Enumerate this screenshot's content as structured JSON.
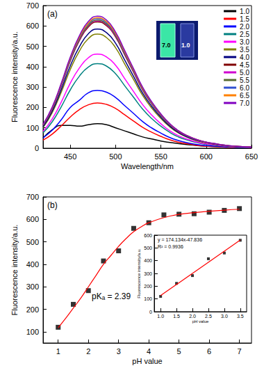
{
  "chart_data": [
    {
      "type": "line",
      "x_label": "Wavelength/nm",
      "y_label": "Fluorescence intensity/a.u.",
      "annotations": [
        "(a)",
        "7.0",
        "1.0"
      ],
      "x": [
        420,
        430,
        440,
        450,
        460,
        470,
        480,
        490,
        500,
        510,
        520,
        530,
        540,
        550,
        560,
        570,
        580,
        590,
        600,
        610,
        620,
        630,
        640,
        650
      ],
      "xlim": [
        420,
        650
      ],
      "xticks": [
        450,
        500,
        550,
        600,
        650
      ],
      "ylim": [
        0,
        700
      ],
      "yticks": [
        0,
        100,
        200,
        300,
        400,
        500,
        600,
        700
      ],
      "grid": false,
      "legend": "top-right",
      "series": [
        {
          "name": "1.0",
          "color": "#000000",
          "values": [
            50,
            90,
            112,
            112,
            108,
            115,
            120,
            115,
            100,
            85,
            70,
            55,
            45,
            35,
            28,
            22,
            17,
            13,
            10,
            8,
            6,
            5,
            4,
            3
          ]
        },
        {
          "name": "1.5",
          "color": "#ff0000",
          "values": [
            40,
            69,
            109,
            153,
            189,
            213,
            222,
            215,
            195,
            164,
            133,
            102,
            78,
            58,
            41,
            29,
            21,
            14,
            10,
            8,
            5,
            3,
            3,
            2
          ]
        },
        {
          "name": "2.0",
          "color": "#0000ff",
          "values": [
            51,
            88,
            139,
            200,
            235,
            272,
            283,
            275,
            249,
            209,
            170,
            130,
            99,
            74,
            52,
            37,
            26,
            18,
            13,
            10,
            7,
            4,
            3,
            3
          ]
        },
        {
          "name": "2.5",
          "color": "#008080",
          "values": [
            75,
            129,
            203,
            286,
            353,
            398,
            415,
            403,
            365,
            307,
            249,
            191,
            145,
            108,
            77,
            54,
            39,
            27,
            19,
            14,
            10,
            6,
            5,
            4
          ]
        },
        {
          "name": "3.0",
          "color": "#ff00ff",
          "values": [
            83,
            143,
            226,
            319,
            393,
            444,
            462,
            448,
            407,
            342,
            277,
            213,
            162,
            120,
            85,
            60,
            43,
            30,
            21,
            16,
            11,
            7,
            6,
            4
          ]
        },
        {
          "name": "3.5",
          "color": "#808000",
          "values": [
            101,
            174,
            274,
            386,
            476,
            538,
            560,
            543,
            493,
            414,
            336,
            258,
            196,
            146,
            104,
            73,
            52,
            36,
            26,
            19,
            13,
            8,
            7,
            5
          ]
        },
        {
          "name": "4.0",
          "color": "#000080",
          "values": [
            105,
            181,
            287,
            404,
            497,
            562,
            585,
            567,
            515,
            433,
            351,
            269,
            205,
            152,
            108,
            76,
            54,
            38,
            27,
            20,
            13,
            9,
            7,
            5
          ]
        },
        {
          "name": "4.5",
          "color": "#800000",
          "values": [
            112,
            192,
            304,
            428,
            527,
            595,
            620,
            601,
            546,
            459,
            372,
            285,
            217,
            161,
            115,
            81,
            58,
            40,
            29,
            21,
            14,
            9,
            7,
            6
          ]
        },
        {
          "name": "5.0",
          "color": "#d000d0",
          "values": [
            113,
            194,
            306,
            431,
            531,
            600,
            625,
            606,
            550,
            463,
            375,
            288,
            219,
            163,
            116,
            81,
            58,
            41,
            29,
            21,
            14,
            9,
            8,
            6
          ]
        },
        {
          "name": "5.5",
          "color": "#556b2f",
          "values": [
            113,
            195,
            308,
            433,
            534,
            603,
            628,
            609,
            553,
            465,
            377,
            289,
            220,
            163,
            116,
            82,
            58,
            41,
            29,
            21,
            14,
            9,
            8,
            6
          ]
        },
        {
          "name": "6.0",
          "color": "#3050d0",
          "values": [
            114,
            197,
            311,
            438,
            540,
            610,
            635,
            616,
            559,
            470,
            381,
            292,
            222,
            165,
            117,
            83,
            59,
            41,
            29,
            22,
            15,
            10,
            8,
            6
          ]
        },
        {
          "name": "6.5",
          "color": "#ff8000",
          "values": [
            115,
            198,
            314,
            442,
            544,
            614,
            640,
            621,
            563,
            474,
            384,
            294,
            224,
            166,
            118,
            83,
            60,
            42,
            29,
            22,
            15,
            10,
            8,
            6
          ]
        },
        {
          "name": "7.0",
          "color": "#8000c0",
          "values": [
            117,
            201,
            318,
            447,
            551,
            622,
            648,
            629,
            570,
            480,
            389,
            298,
            227,
            168,
            120,
            84,
            60,
            42,
            30,
            22,
            15,
            10,
            8,
            6
          ]
        }
      ]
    },
    {
      "type": "scatter",
      "x_label": "pH value",
      "y_label": "Fluorescence intensity/a.u.",
      "annotations": [
        "(b)",
        "pKₐ = 2.39"
      ],
      "xlim": [
        0.5,
        7.4
      ],
      "xticks": [
        1,
        2,
        3,
        4,
        5,
        6,
        7
      ],
      "ylim": [
        50,
        700
      ],
      "yticks": [
        100,
        200,
        300,
        400,
        500,
        600,
        700
      ],
      "grid": false,
      "series": [
        {
          "type": "scatter",
          "marker": "square",
          "color": "#000000",
          "x": [
            1.0,
            1.5,
            2.0,
            2.5,
            3.0,
            3.5,
            4.0,
            4.5,
            5.0,
            5.5,
            6.0,
            6.5,
            7.0
          ],
          "values": [
            120,
            222,
            283,
            415,
            460,
            560,
            585,
            620,
            623,
            625,
            632,
            640,
            648
          ]
        },
        {
          "type": "line",
          "color": "#ff0000",
          "x": [
            1.0,
            1.25,
            1.5,
            1.75,
            2.0,
            2.25,
            2.5,
            2.75,
            3.0,
            3.25,
            3.5,
            3.75,
            4.0,
            4.5,
            5.0,
            5.5,
            6.0,
            6.5,
            7.0
          ],
          "values": [
            118,
            160,
            205,
            250,
            300,
            350,
            400,
            440,
            480,
            515,
            545,
            567,
            585,
            608,
            622,
            630,
            636,
            641,
            645
          ]
        }
      ]
    },
    {
      "type": "scatter",
      "x_label": "pH value",
      "y_label": "Fluorescence intensity/a.u.",
      "annotations": [
        "y = 174.134x-47.836",
        "R² = 0.9936"
      ],
      "xlim": [
        0.8,
        3.7
      ],
      "xticks": [
        {
          "value": 1,
          "label": "1.0"
        },
        {
          "value": 1.5,
          "label": "1.5"
        },
        {
          "value": 2,
          "label": "2.0"
        },
        {
          "value": 2.5,
          "label": "2.5"
        },
        {
          "value": 3,
          "label": "3.0"
        },
        {
          "value": 3.5,
          "label": "3.5"
        }
      ],
      "ylim": [
        0,
        600
      ],
      "yticks": [
        0,
        100,
        200,
        300,
        400,
        500,
        600
      ],
      "grid": false,
      "series": [
        {
          "type": "scatter",
          "marker": "square",
          "color": "#000000",
          "x": [
            1.0,
            1.5,
            2.0,
            2.5,
            3.0,
            3.5
          ],
          "values": [
            120,
            222,
            283,
            415,
            460,
            560
          ]
        },
        {
          "type": "line",
          "color": "#ff0000",
          "x": [
            1.0,
            3.5
          ],
          "values": [
            126.3,
            561.6
          ]
        }
      ]
    }
  ]
}
